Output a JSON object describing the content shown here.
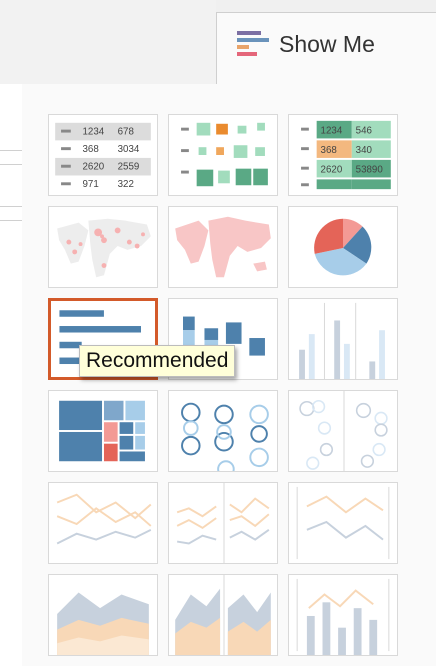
{
  "panel": {
    "title": "Show Me",
    "tooltip": "Recommended"
  },
  "thumbnails": [
    {
      "name": "text-table",
      "selected": false
    },
    {
      "name": "heat-map",
      "selected": false
    },
    {
      "name": "highlight-table",
      "selected": false
    },
    {
      "name": "symbol-map",
      "selected": false
    },
    {
      "name": "filled-map",
      "selected": false
    },
    {
      "name": "pie-chart",
      "selected": false
    },
    {
      "name": "horizontal-bars",
      "selected": true
    },
    {
      "name": "stacked-bars",
      "selected": false
    },
    {
      "name": "side-by-side-bars",
      "selected": false
    },
    {
      "name": "treemap",
      "selected": false
    },
    {
      "name": "circle-views",
      "selected": false
    },
    {
      "name": "side-by-side-circles",
      "selected": false
    },
    {
      "name": "lines-continuous",
      "selected": false
    },
    {
      "name": "lines-discrete",
      "selected": false
    },
    {
      "name": "dual-lines",
      "selected": false
    },
    {
      "name": "area-continuous",
      "selected": false
    },
    {
      "name": "area-discrete",
      "selected": false
    },
    {
      "name": "dual-combination",
      "selected": false
    }
  ],
  "text_table": {
    "rows": [
      [
        "1234",
        "678"
      ],
      [
        "368",
        "3034"
      ],
      [
        "2620",
        "2559"
      ],
      [
        "971",
        "322"
      ]
    ]
  },
  "highlight_table": {
    "rows": [
      [
        "1234",
        "546"
      ],
      [
        "368",
        "340"
      ],
      [
        "2620",
        "53890"
      ]
    ]
  },
  "colors": {
    "accent_selected": "#d35a2a",
    "blue": "#4e81ac",
    "light_blue": "#a7cde9",
    "red": "#e46458",
    "green": "#5aa985",
    "orange": "#f0a75c"
  }
}
